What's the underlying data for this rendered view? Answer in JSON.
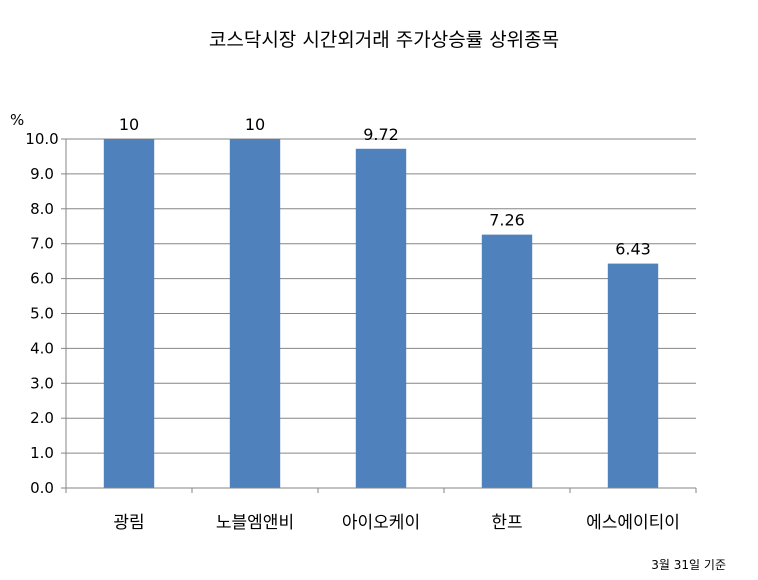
{
  "chart_data": {
    "type": "bar",
    "title": "코스닥시장 시간외거래  주가상승률 상위종목",
    "ylabel": "%",
    "categories": [
      "광림",
      "노블엠앤비",
      "아이오케이",
      "한프",
      "에스에이티이"
    ],
    "values": [
      10,
      10,
      9.72,
      7.26,
      6.43
    ],
    "data_labels": [
      "10",
      "10",
      "9.72",
      "7.26",
      "6.43"
    ],
    "ylim": [
      0,
      10
    ],
    "yticks": [
      "0.0",
      "1.0",
      "2.0",
      "3.0",
      "4.0",
      "5.0",
      "6.0",
      "7.0",
      "8.0",
      "9.0",
      "10.0"
    ],
    "grid": true,
    "bar_color": "#4f81bd",
    "footnote": "3월 31일 기준"
  }
}
